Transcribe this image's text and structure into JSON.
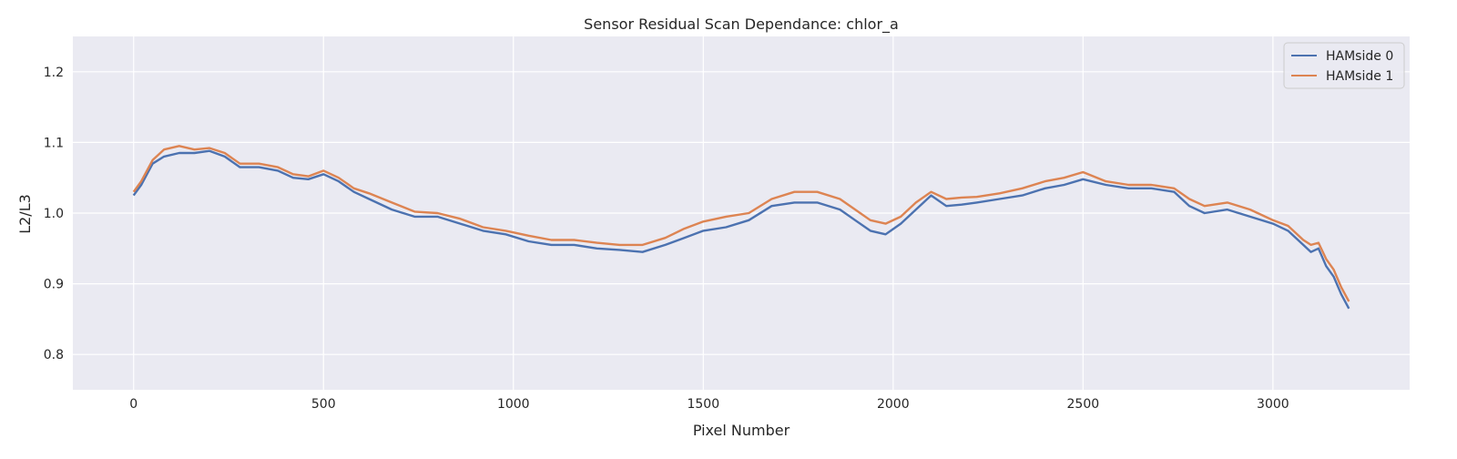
{
  "chart_data": {
    "type": "line",
    "title": "Sensor Residual Scan Dependance: chlor_a",
    "xlabel": "Pixel Number",
    "ylabel": "L2/L3",
    "xlim": [
      -160,
      3360
    ],
    "ylim": [
      0.75,
      1.25
    ],
    "x_ticks": [
      0,
      500,
      1000,
      1500,
      2000,
      2500,
      3000
    ],
    "y_ticks": [
      0.8,
      0.9,
      1.0,
      1.1,
      1.2
    ],
    "grid": true,
    "legend_position": "top-right",
    "background_color": "#eaeaf2",
    "series": [
      {
        "name": "HAMside 0",
        "color": "#4c72b0",
        "x": [
          0,
          20,
          50,
          80,
          120,
          160,
          200,
          240,
          280,
          330,
          380,
          420,
          460,
          500,
          540,
          580,
          620,
          680,
          740,
          800,
          860,
          920,
          980,
          1040,
          1100,
          1160,
          1220,
          1280,
          1340,
          1400,
          1450,
          1500,
          1560,
          1620,
          1680,
          1740,
          1800,
          1860,
          1900,
          1940,
          1980,
          2020,
          2060,
          2100,
          2140,
          2180,
          2220,
          2280,
          2340,
          2400,
          2450,
          2500,
          2560,
          2620,
          2680,
          2740,
          2780,
          2820,
          2880,
          2940,
          3000,
          3040,
          3080,
          3100,
          3120,
          3140,
          3160,
          3180,
          3200
        ],
        "y": [
          1.025,
          1.04,
          1.07,
          1.08,
          1.085,
          1.085,
          1.088,
          1.08,
          1.065,
          1.065,
          1.06,
          1.05,
          1.048,
          1.055,
          1.045,
          1.03,
          1.02,
          1.005,
          0.995,
          0.995,
          0.985,
          0.975,
          0.97,
          0.96,
          0.955,
          0.955,
          0.95,
          0.948,
          0.945,
          0.955,
          0.965,
          0.975,
          0.98,
          0.99,
          1.01,
          1.015,
          1.015,
          1.005,
          0.99,
          0.975,
          0.97,
          0.985,
          1.005,
          1.025,
          1.01,
          1.012,
          1.015,
          1.02,
          1.025,
          1.035,
          1.04,
          1.048,
          1.04,
          1.035,
          1.035,
          1.03,
          1.01,
          1.0,
          1.005,
          0.995,
          0.985,
          0.975,
          0.955,
          0.945,
          0.95,
          0.925,
          0.91,
          0.885,
          0.865
        ]
      },
      {
        "name": "HAMside 1",
        "color": "#dd8452",
        "x": [
          0,
          20,
          50,
          80,
          120,
          160,
          200,
          240,
          280,
          330,
          380,
          420,
          460,
          500,
          540,
          580,
          620,
          680,
          740,
          800,
          860,
          920,
          980,
          1040,
          1100,
          1160,
          1220,
          1280,
          1340,
          1400,
          1450,
          1500,
          1560,
          1620,
          1680,
          1740,
          1800,
          1860,
          1900,
          1940,
          1980,
          2020,
          2060,
          2100,
          2140,
          2180,
          2220,
          2280,
          2340,
          2400,
          2450,
          2500,
          2560,
          2620,
          2680,
          2740,
          2780,
          2820,
          2880,
          2940,
          3000,
          3040,
          3080,
          3100,
          3120,
          3140,
          3160,
          3180,
          3200
        ],
        "y": [
          1.03,
          1.045,
          1.075,
          1.09,
          1.095,
          1.09,
          1.092,
          1.085,
          1.07,
          1.07,
          1.065,
          1.055,
          1.052,
          1.06,
          1.05,
          1.035,
          1.028,
          1.015,
          1.002,
          1.0,
          0.992,
          0.98,
          0.975,
          0.968,
          0.962,
          0.962,
          0.958,
          0.955,
          0.955,
          0.965,
          0.978,
          0.988,
          0.995,
          1.0,
          1.02,
          1.03,
          1.03,
          1.02,
          1.005,
          0.99,
          0.985,
          0.995,
          1.015,
          1.03,
          1.02,
          1.022,
          1.023,
          1.028,
          1.035,
          1.045,
          1.05,
          1.058,
          1.045,
          1.04,
          1.04,
          1.035,
          1.02,
          1.01,
          1.015,
          1.005,
          0.99,
          0.982,
          0.962,
          0.955,
          0.958,
          0.935,
          0.92,
          0.895,
          0.875
        ]
      }
    ]
  }
}
